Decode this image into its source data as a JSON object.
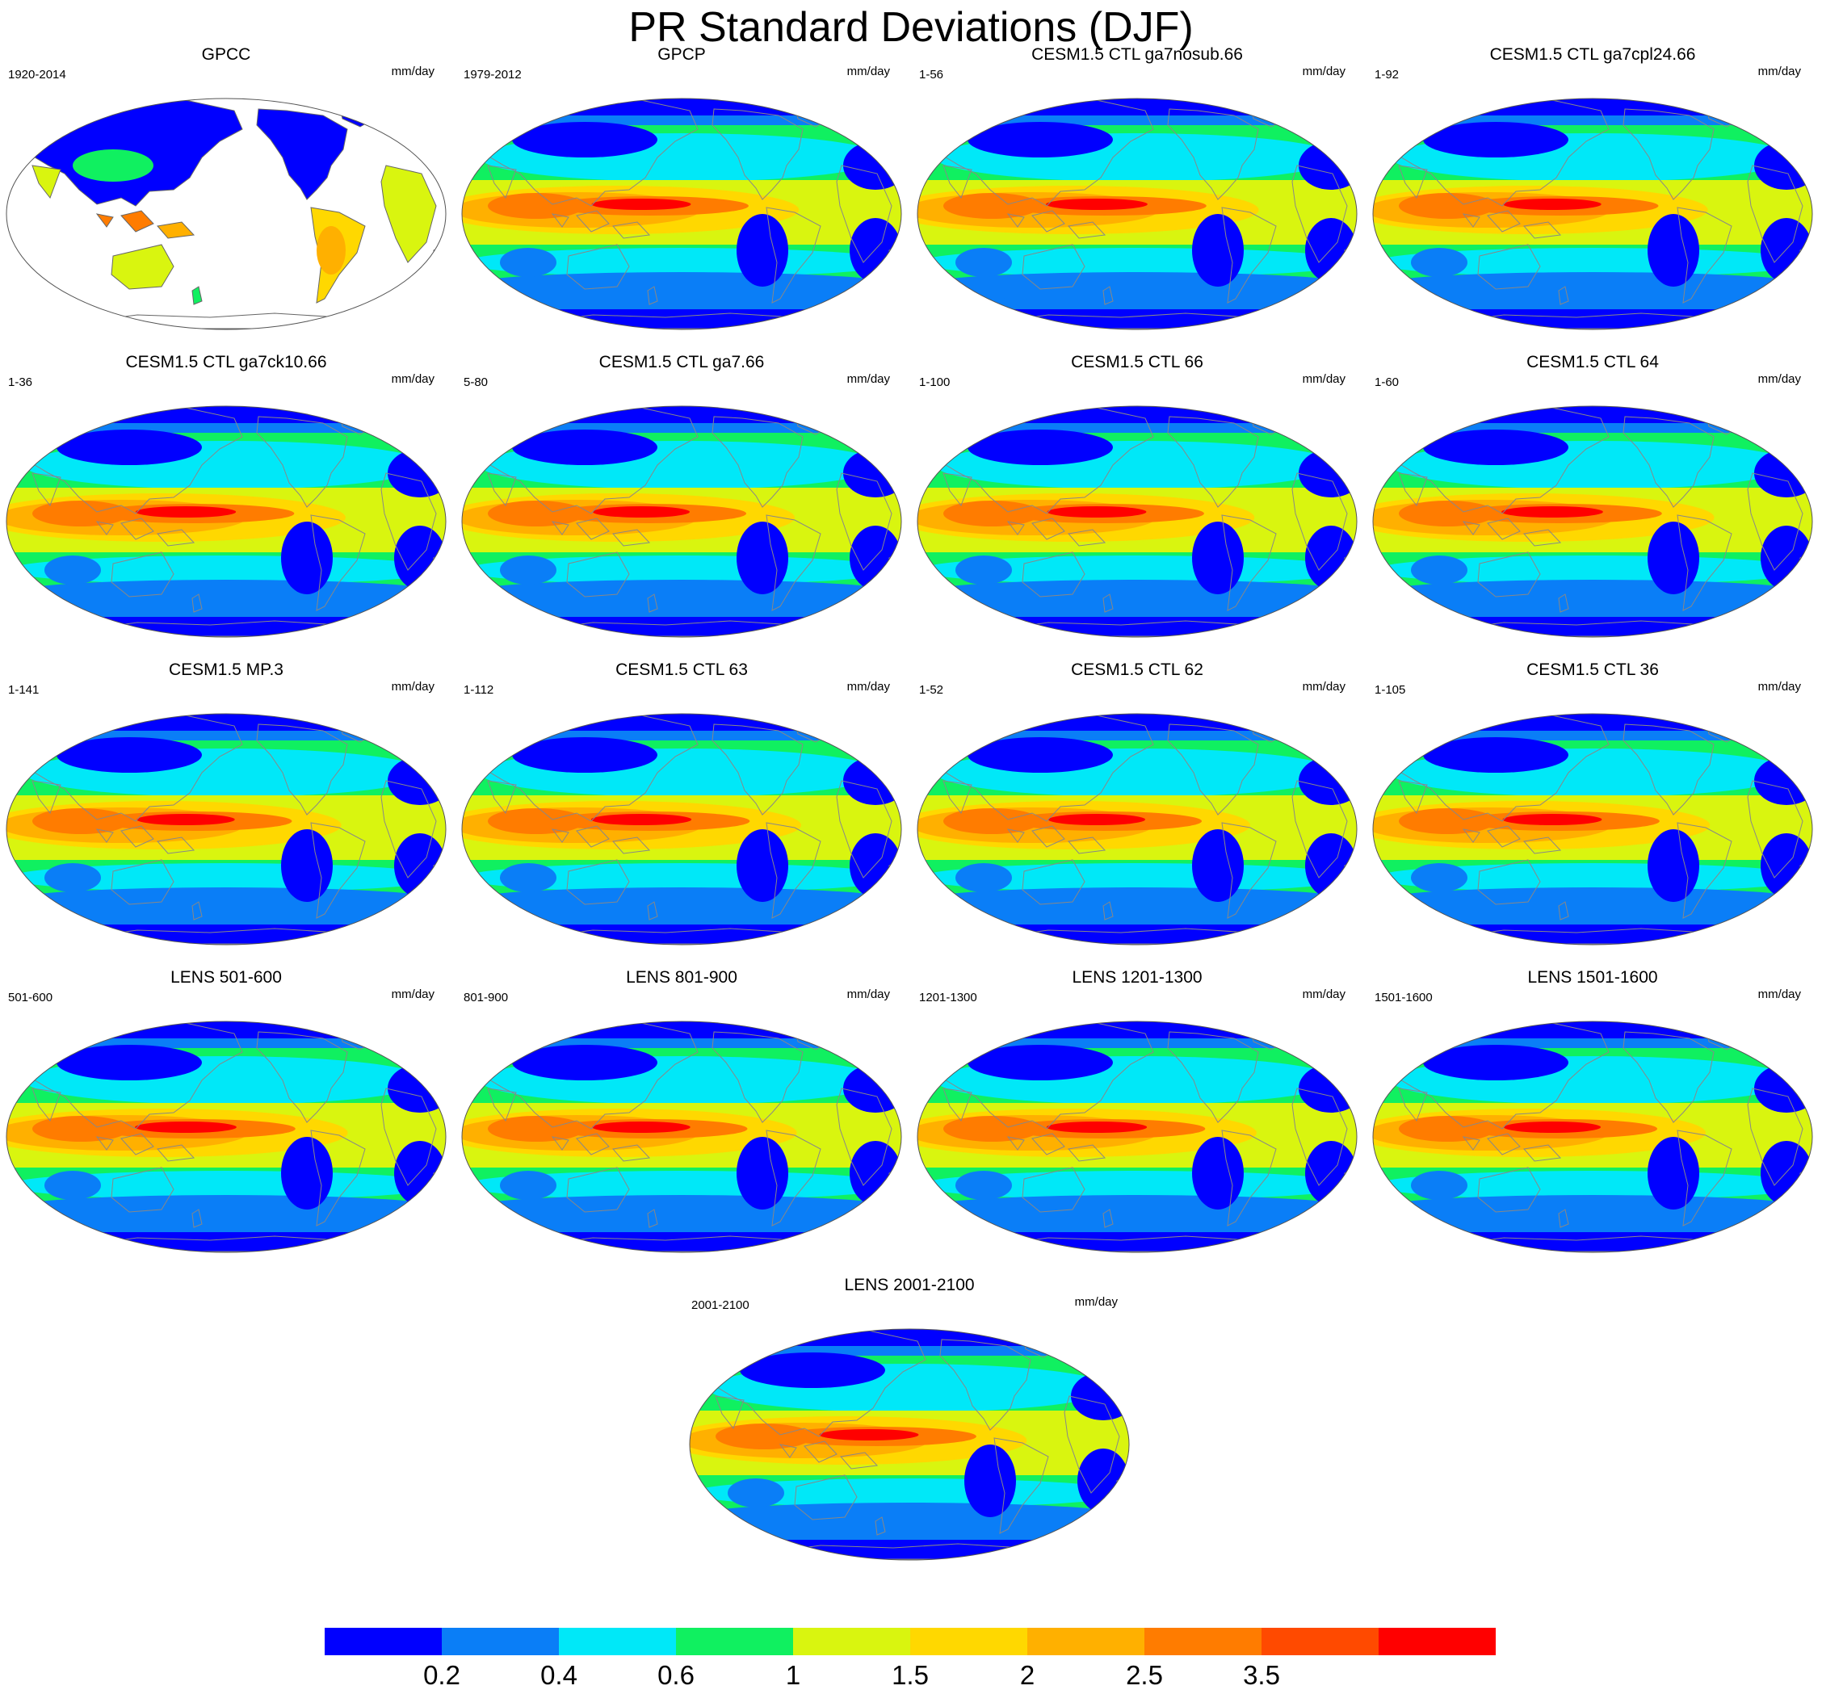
{
  "title": "PR Standard Deviations (DJF)",
  "unit_label": "mm/day",
  "panels": [
    {
      "title": "GPCC",
      "years": "1920-2014",
      "land_only": true
    },
    {
      "title": "GPCP",
      "years": "1979-2012"
    },
    {
      "title": "CESM1.5 CTL ga7nosub.66",
      "years": "1-56"
    },
    {
      "title": "CESM1.5 CTL ga7cpl24.66",
      "years": "1-92"
    },
    {
      "title": "CESM1.5 CTL ga7ck10.66",
      "years": "1-36"
    },
    {
      "title": "CESM1.5 CTL ga7.66",
      "years": "5-80"
    },
    {
      "title": "CESM1.5 CTL 66",
      "years": "1-100"
    },
    {
      "title": "CESM1.5 CTL 64",
      "years": "1-60"
    },
    {
      "title": "CESM1.5 MP.3",
      "years": "1-141"
    },
    {
      "title": "CESM1.5 CTL 63",
      "years": "1-112"
    },
    {
      "title": "CESM1.5 CTL 62",
      "years": "1-52"
    },
    {
      "title": "CESM1.5 CTL 36",
      "years": "1-105"
    },
    {
      "title": "LENS 501-600",
      "years": "501-600"
    },
    {
      "title": "LENS 801-900",
      "years": "801-900"
    },
    {
      "title": "LENS 1201-1300",
      "years": "1201-1300"
    },
    {
      "title": "LENS 1501-1600",
      "years": "1501-1600"
    },
    {
      "title": "LENS 2001-2100",
      "years": "2001-2100"
    }
  ],
  "colorbar": {
    "colors": [
      "#0000ff",
      "#0a7ef7",
      "#00e8f8",
      "#10f060",
      "#d9f50f",
      "#ffd800",
      "#ffb000",
      "#ff7c00",
      "#ff4a00",
      "#ff0000"
    ],
    "labels": [
      "0.2",
      "0.4",
      "0.6",
      "1",
      "1.5",
      "2",
      "2.5",
      "3.5"
    ]
  }
}
